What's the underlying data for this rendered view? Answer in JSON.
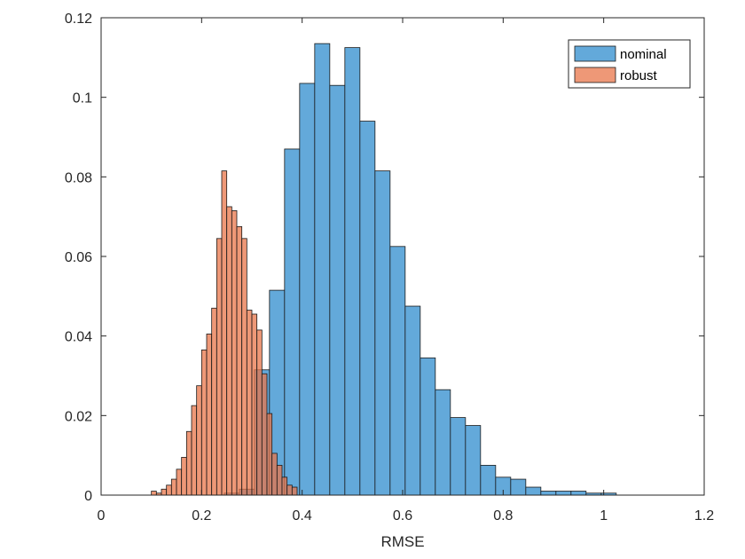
{
  "chart_data": {
    "type": "histogram",
    "title": "",
    "xlabel": "RMSE",
    "ylabel": "",
    "xlim": [
      0,
      1.2
    ],
    "ylim": [
      0,
      0.12
    ],
    "xticks": [
      0,
      0.2,
      0.4,
      0.6,
      0.8,
      1,
      1.2
    ],
    "xtick_labels": [
      "0",
      "0.2",
      "0.4",
      "0.6",
      "0.8",
      "1",
      "1.2"
    ],
    "yticks": [
      0,
      0.02,
      0.04,
      0.06,
      0.08,
      0.1,
      0.12
    ],
    "ytick_labels": [
      "0",
      "0.02",
      "0.04",
      "0.06",
      "0.08",
      "0.1",
      "0.12"
    ],
    "grid": false,
    "legend_position": "top-right",
    "series": [
      {
        "name": "nominal",
        "color": "#5BA4D8",
        "opacity": 0.95,
        "bin_width": 0.03,
        "bin_starts": [
          0.245,
          0.275,
          0.305,
          0.335,
          0.365,
          0.395,
          0.425,
          0.455,
          0.485,
          0.515,
          0.545,
          0.575,
          0.605,
          0.635,
          0.665,
          0.695,
          0.725,
          0.755,
          0.785,
          0.815,
          0.845,
          0.875,
          0.905,
          0.935,
          0.965,
          0.995
        ],
        "values": [
          0.0005,
          0.0015,
          0.0315,
          0.0515,
          0.087,
          0.1035,
          0.1135,
          0.103,
          0.1125,
          0.094,
          0.0815,
          0.0625,
          0.0475,
          0.0345,
          0.0265,
          0.0195,
          0.0175,
          0.0075,
          0.0045,
          0.004,
          0.002,
          0.001,
          0.001,
          0.001,
          0.0005,
          0.0005
        ]
      },
      {
        "name": "robust",
        "color": "#E8764A",
        "opacity": 0.75,
        "bin_width": 0.01,
        "bin_starts": [
          0.1,
          0.11,
          0.12,
          0.13,
          0.14,
          0.15,
          0.16,
          0.17,
          0.18,
          0.19,
          0.2,
          0.21,
          0.22,
          0.23,
          0.24,
          0.25,
          0.26,
          0.27,
          0.28,
          0.29,
          0.3,
          0.31,
          0.32,
          0.33,
          0.34,
          0.35,
          0.36,
          0.37,
          0.38
        ],
        "values": [
          0.001,
          0.0005,
          0.0015,
          0.0025,
          0.004,
          0.0065,
          0.0095,
          0.016,
          0.0225,
          0.0275,
          0.0365,
          0.0405,
          0.047,
          0.0645,
          0.0815,
          0.0725,
          0.0715,
          0.0675,
          0.0645,
          0.0465,
          0.0455,
          0.0415,
          0.0305,
          0.0205,
          0.0105,
          0.0075,
          0.0045,
          0.0025,
          0.002
        ]
      }
    ]
  }
}
